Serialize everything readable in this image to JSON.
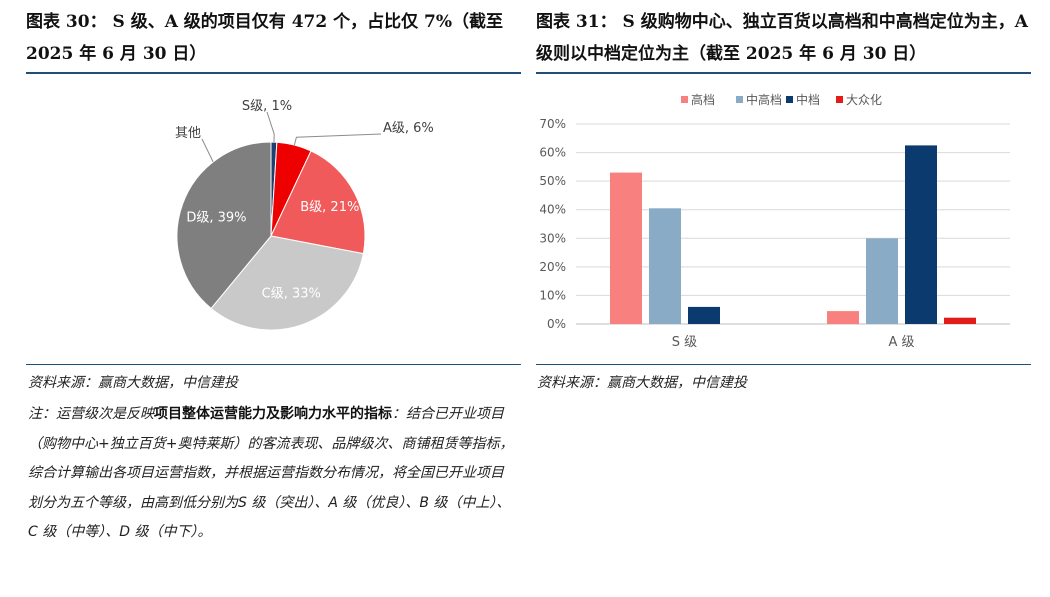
{
  "left": {
    "title": "图表 30： S 级、A 级的项目仅有 472 个，占比仅 7%（截至 2025 年 6 月 30 日）",
    "source": "资料来源：赢商大数据，中信建投"
  },
  "right": {
    "title": "图表 31： S 级购物中心、独立百货以高档和中高档定位为主，A 级则以中档定位为主（截至 2025 年 6 月 30 日）",
    "source": "资料来源：赢商大数据，中信建投"
  },
  "note": {
    "prefix": "注：运营级次是反映",
    "bold": "项目整体运营能力及影响力水平的指标",
    "suffix": "：结合已开业项目（购物中心+独立百货+奥特莱斯）的客流表现、品牌级次、商铺租赁等指标，综合计算输出各项目运营指数，并根据运营指数分布情况，将全国已开业项目划分为五个等级，由高到低分别为S 级（突出）、A 级（优良）、B 级（中上）、C 级（中等）、D 级（中下）。"
  },
  "chart_data": [
    {
      "type": "pie",
      "title": "",
      "slices": [
        {
          "label": "S级, 1%",
          "value": 1,
          "color": "#1f3f6e"
        },
        {
          "label": "A级, 6%",
          "value": 6,
          "color": "#ee0000"
        },
        {
          "label": "B级, 21%",
          "value": 21,
          "color": "#f05a5a"
        },
        {
          "label": "C级, 33%",
          "value": 33,
          "color": "#c9c9c9"
        },
        {
          "label": "D级, 39%",
          "value": 39,
          "color": "#7f7f7f"
        },
        {
          "label": "其他",
          "value": 0,
          "color": "#7f7f7f"
        }
      ]
    },
    {
      "type": "bar",
      "title": "",
      "categories": [
        "S 级",
        "A 级"
      ],
      "series": [
        {
          "name": "高档",
          "values": [
            53,
            4.5
          ],
          "color": "#f8817f"
        },
        {
          "name": "中高档",
          "values": [
            40.5,
            30
          ],
          "color": "#8aabc5"
        },
        {
          "name": "中档",
          "values": [
            6,
            62.5
          ],
          "color": "#0b3b6e"
        },
        {
          "name": "大众化",
          "values": [
            0,
            2.2
          ],
          "color": "#e31b1b"
        }
      ],
      "yticks": [
        "0%",
        "10%",
        "20%",
        "30%",
        "40%",
        "50%",
        "60%",
        "70%"
      ],
      "ylim": [
        0,
        70
      ],
      "grid": true,
      "legend": "top-center"
    }
  ]
}
